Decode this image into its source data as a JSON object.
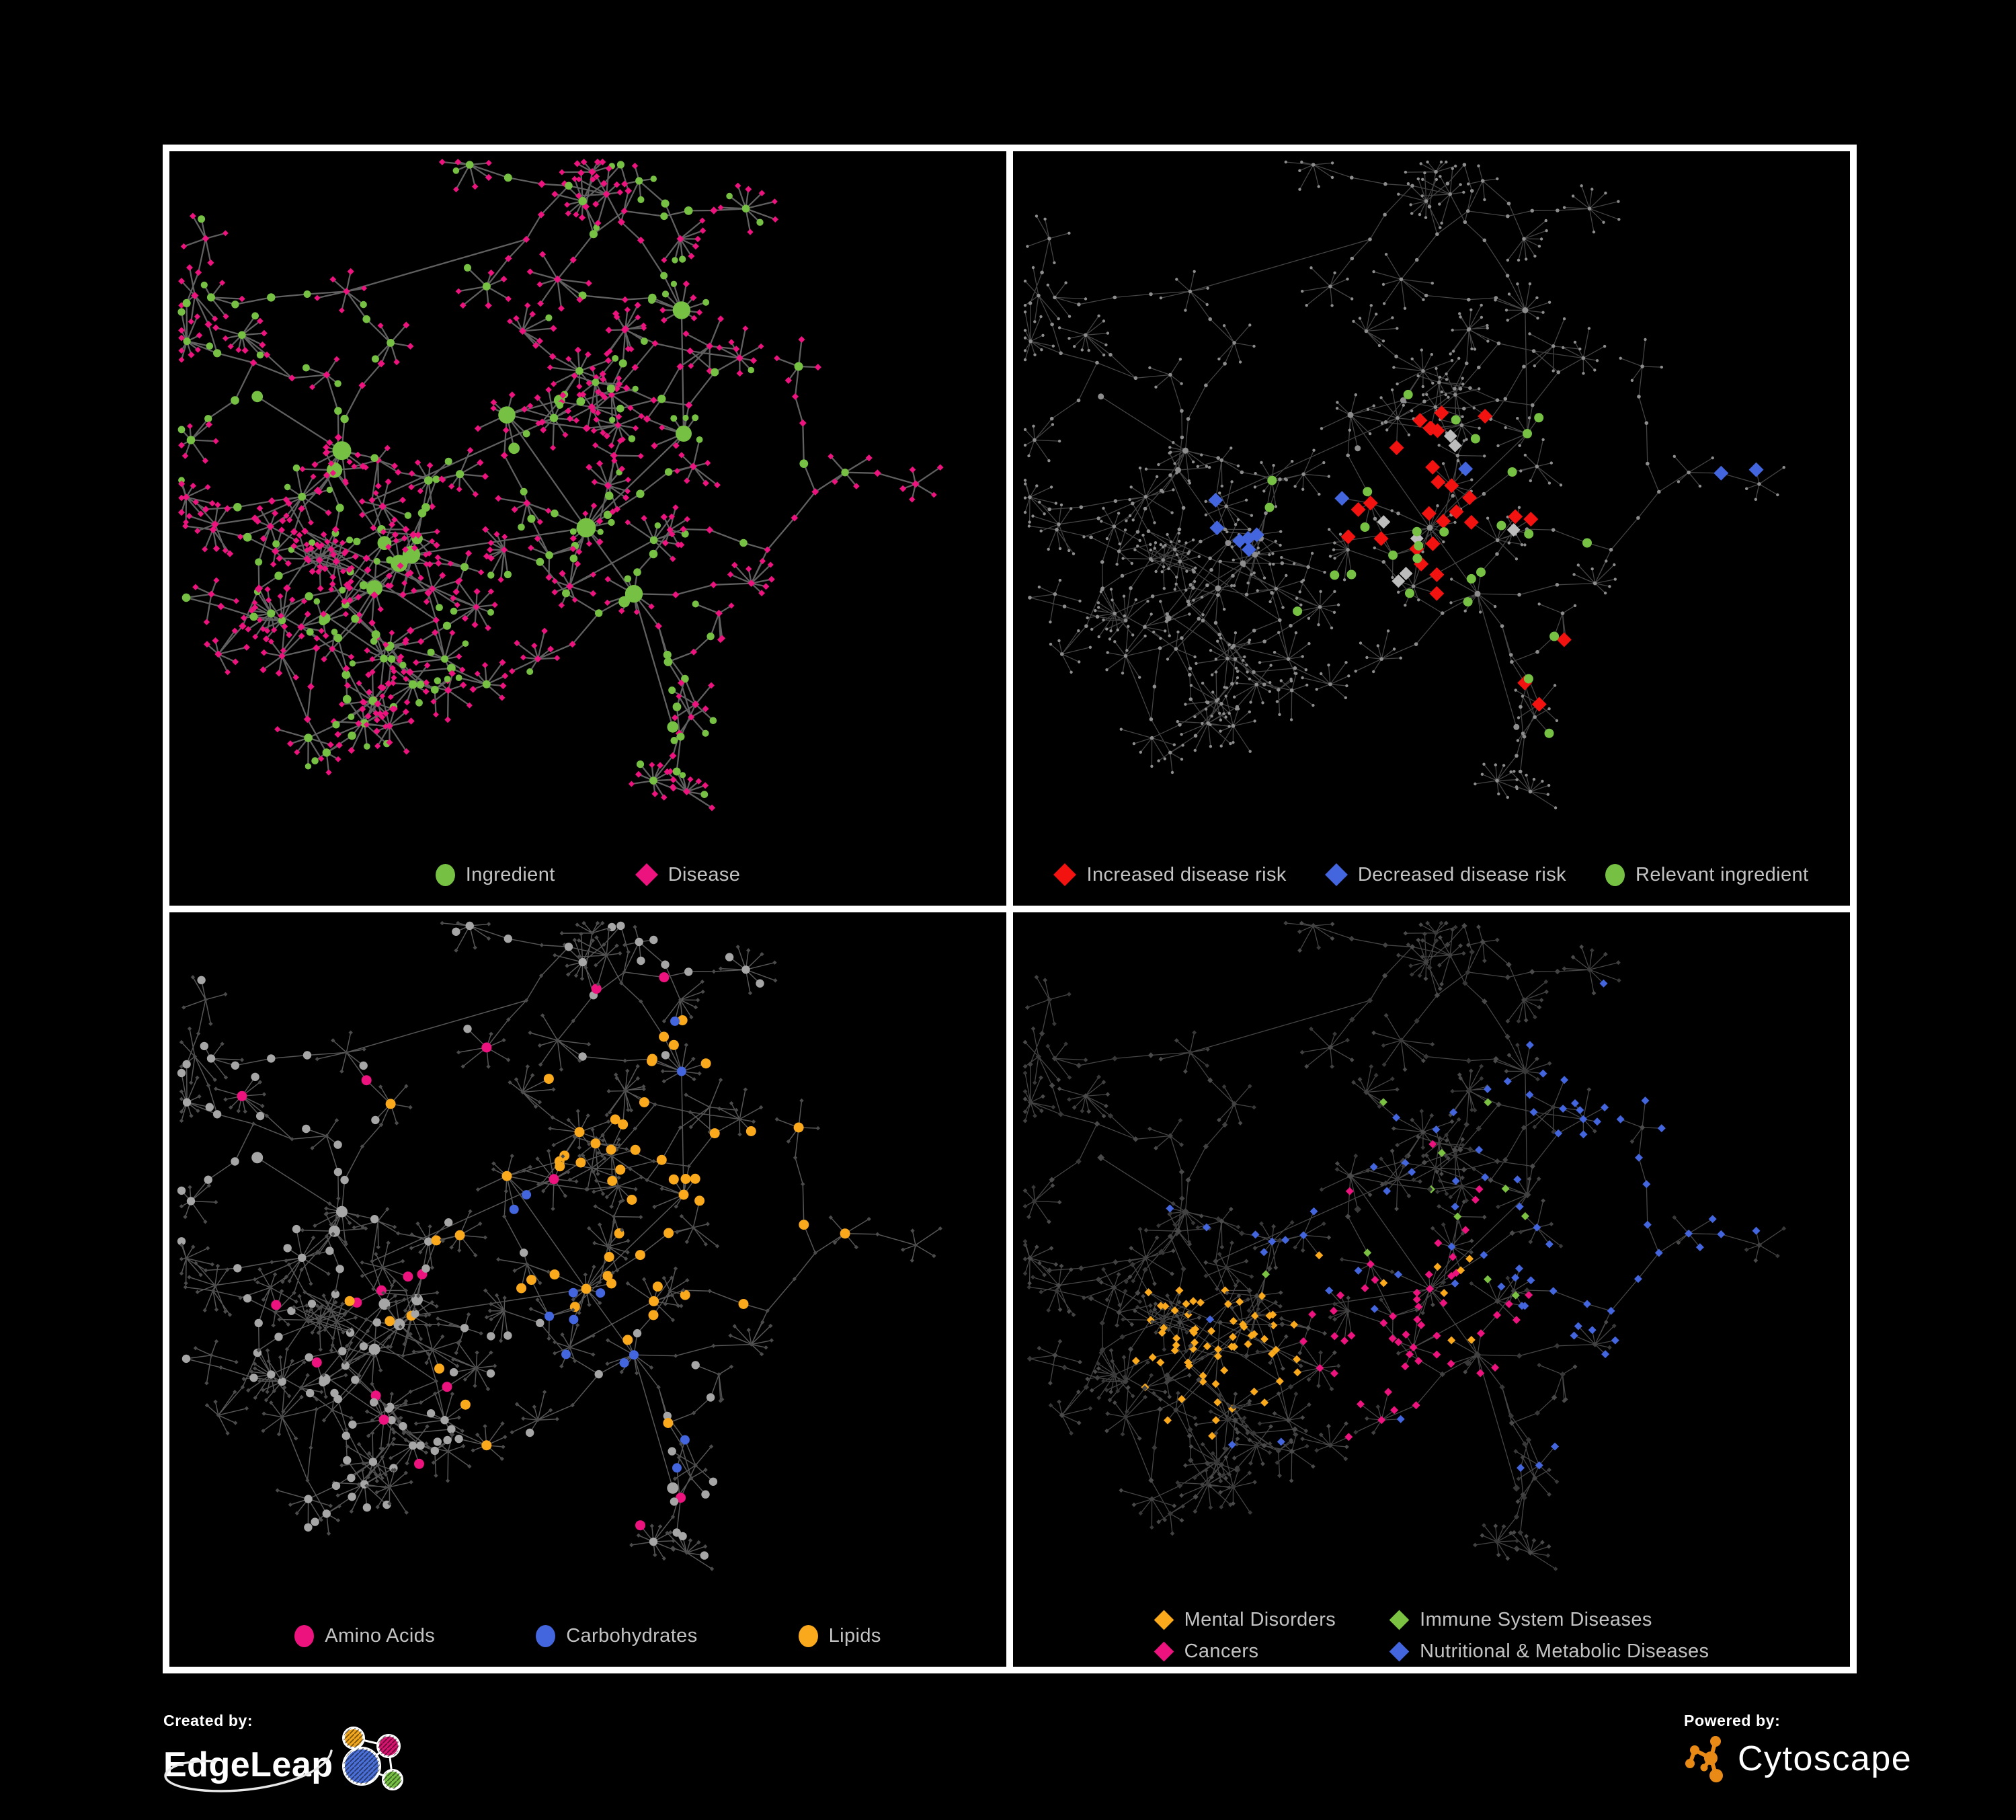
{
  "canvas": {
    "background": "#000000",
    "frame_color": "#ffffff"
  },
  "network": {
    "type": "node-link-graph",
    "shared_layout_across_panels": true,
    "approx_node_count": 780,
    "approx_edge_count": 820,
    "node_shape_semantics": {
      "ingredient": "circle",
      "disease": "diamond"
    }
  },
  "panels": [
    {
      "id": "ingredient-disease",
      "legend": {
        "columns": 1,
        "items": [
          {
            "label": "Ingredient",
            "shape": "circle",
            "color": "#76C043"
          },
          {
            "label": "Disease",
            "shape": "diamond",
            "color": "#EC137E"
          }
        ]
      },
      "render": {
        "mode": "typed",
        "edge_color": "#6a6a6a",
        "edge_width": 2.3,
        "edge_opacity": 0.9,
        "ingredient_color": "#76C043",
        "disease_color": "#EC137E"
      }
    },
    {
      "id": "disease-risk",
      "legend": {
        "columns": 1,
        "items": [
          {
            "label": "Increased disease risk",
            "shape": "diamond",
            "color": "#F2120F"
          },
          {
            "label": "Decreased disease risk",
            "shape": "diamond",
            "color": "#4365DD"
          },
          {
            "label": "Relevant ingredient",
            "shape": "circle",
            "color": "#76C043"
          }
        ]
      },
      "render": {
        "mode": "dim-highlight",
        "edge_color": "#4f4f4f",
        "edge_width": 1.3,
        "edge_opacity": 0.85,
        "base_color": "#8d8d8d",
        "highlights": [
          {
            "color": "#F2120F",
            "shape": "diamond",
            "count": 26,
            "bias": "center",
            "size": 11,
            "from": "disease"
          },
          {
            "color": "#F2120F",
            "shape": "diamond",
            "count": 3,
            "bias": "bottom-right",
            "size": 11,
            "from": "disease"
          },
          {
            "color": "#BDBDBD",
            "shape": "diamond",
            "count": 7,
            "bias": "center-wide",
            "size": 10,
            "from": "disease"
          },
          {
            "color": "#4365DD",
            "shape": "diamond",
            "count": 6,
            "bias": "left",
            "size": 11,
            "from": "disease"
          },
          {
            "color": "#4365DD",
            "shape": "diamond",
            "count": 2,
            "bias": "far-right",
            "size": 11,
            "from": "disease"
          },
          {
            "color": "#4365DD",
            "shape": "diamond",
            "count": 2,
            "bias": "center",
            "size": 11,
            "from": "disease"
          },
          {
            "color": "#76C043",
            "shape": "circle",
            "count": 24,
            "bias": "center-wide",
            "size": 7,
            "from": "ingredient"
          },
          {
            "color": "#76C043",
            "shape": "circle",
            "count": 4,
            "bias": "right",
            "size": 7,
            "from": "ingredient"
          }
        ]
      }
    },
    {
      "id": "nutrient-classes",
      "legend": {
        "columns": 1,
        "items": [
          {
            "label": "Amino Acids",
            "shape": "circle",
            "color": "#EC137E"
          },
          {
            "label": "Carbohydrates",
            "shape": "circle",
            "color": "#4365DD"
          },
          {
            "label": "Lipids",
            "shape": "circle",
            "color": "#F9A91B"
          }
        ]
      },
      "render": {
        "mode": "typed-dim",
        "edge_color": "#6b6b6b",
        "edge_width": 1.5,
        "edge_opacity": 0.8,
        "ingredient_base_color": "#a6a6a6",
        "disease_base_color": "#4b4b4b",
        "highlights": [
          {
            "color": "#F9A91B",
            "shape": "circle",
            "count": 46,
            "bias": "cluster-a",
            "size": 7.5,
            "from": "ingredient"
          },
          {
            "color": "#F9A91B",
            "shape": "circle",
            "count": 14,
            "bias": "wide",
            "size": 7.5,
            "from": "ingredient"
          },
          {
            "color": "#4365DD",
            "shape": "circle",
            "count": 9,
            "bias": "cluster-a",
            "size": 7,
            "from": "ingredient"
          },
          {
            "color": "#4365DD",
            "shape": "circle",
            "count": 4,
            "bias": "wide",
            "size": 7,
            "from": "ingredient"
          },
          {
            "color": "#EC137E",
            "shape": "circle",
            "count": 18,
            "bias": "wide",
            "size": 7.5,
            "from": "ingredient"
          }
        ]
      }
    },
    {
      "id": "disease-categories",
      "legend": {
        "columns": 2,
        "items": [
          {
            "label": "Mental Disorders",
            "shape": "diamond",
            "color": "#F9A91B"
          },
          {
            "label": "Immune System Diseases",
            "shape": "diamond",
            "color": "#7CC242"
          },
          {
            "label": "Cancers",
            "shape": "diamond",
            "color": "#EC137E"
          },
          {
            "label": "Nutritional & Metabolic Diseases",
            "shape": "diamond",
            "color": "#4365DD"
          }
        ]
      },
      "render": {
        "mode": "diamond-dim",
        "edge_color": "#565656",
        "edge_width": 1.3,
        "edge_opacity": 0.8,
        "base_colors": [
          "#383838",
          "#414141",
          "#4a4a4a"
        ],
        "highlights": [
          {
            "color": "#F9A91B",
            "shape": "diamond",
            "count": 66,
            "bias": "cluster-b",
            "size": 6
          },
          {
            "color": "#F9A91B",
            "shape": "diamond",
            "count": 8,
            "bias": "wide",
            "size": 6
          },
          {
            "color": "#EC137E",
            "shape": "diamond",
            "count": 46,
            "bias": "center-low",
            "size": 6
          },
          {
            "color": "#EC137E",
            "shape": "diamond",
            "count": 8,
            "bias": "wide",
            "size": 6
          },
          {
            "color": "#4365DD",
            "shape": "diamond",
            "count": 22,
            "bias": "upper-right",
            "size": 6
          },
          {
            "color": "#4365DD",
            "shape": "diamond",
            "count": 16,
            "bias": "mid-right",
            "size": 6
          },
          {
            "color": "#4365DD",
            "shape": "diamond",
            "count": 42,
            "bias": "wide",
            "size": 6
          },
          {
            "color": "#7CC242",
            "shape": "diamond",
            "count": 11,
            "bias": "wide",
            "size": 6
          }
        ]
      }
    }
  ],
  "footer": {
    "created_by_label": "Created by:",
    "created_by_name": "EdgeLeap",
    "powered_by_label": "Powered by:",
    "powered_by_name": "Cytoscape",
    "edgeleap_colors": {
      "blue": "#4a6fd6",
      "orange": "#f2a71c",
      "magenta": "#d4146e",
      "green": "#76c043"
    },
    "cytoscape_orange": "#E98A17"
  }
}
